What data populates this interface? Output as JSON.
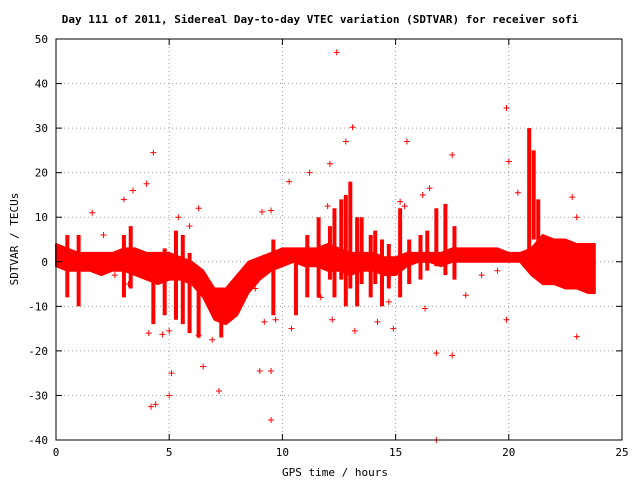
{
  "chart_data": {
    "type": "scatter",
    "title": "Day 111 of 2011, Sidereal Day-to-day VTEC variation (SDTVAR) for receiver sofi",
    "xlabel": "GPS time / hours",
    "ylabel": "SDTVAR / TECUs",
    "xlim": [
      0,
      25
    ],
    "ylim": [
      -40,
      50
    ],
    "x_ticks": [
      "0",
      "5",
      "10",
      "15",
      "20",
      "25"
    ],
    "y_ticks": [
      "50",
      "40",
      "30",
      "20",
      "10",
      "0",
      "-10",
      "-20",
      "-30",
      "-40"
    ],
    "grid": true,
    "marker": "+",
    "color": "#ff0000",
    "series": [
      {
        "band": [
          [
            0.0,
            -1,
            4
          ],
          [
            0.5,
            -2,
            3
          ],
          [
            1.0,
            -2,
            2
          ],
          [
            1.5,
            -2,
            2
          ],
          [
            2.0,
            -3,
            2
          ],
          [
            2.5,
            -2,
            2
          ],
          [
            3.0,
            -2,
            3
          ],
          [
            3.5,
            -3,
            3
          ],
          [
            4.0,
            -4,
            2
          ],
          [
            4.5,
            -5,
            2
          ],
          [
            5.0,
            -4,
            2
          ],
          [
            5.5,
            -4,
            1
          ],
          [
            6.0,
            -5,
            0
          ],
          [
            6.5,
            -8,
            -2
          ],
          [
            7.0,
            -13,
            -6
          ],
          [
            7.5,
            -14,
            -6
          ],
          [
            8.0,
            -12,
            -3
          ],
          [
            8.5,
            -7,
            0
          ],
          [
            9.0,
            -4,
            1
          ],
          [
            9.5,
            -2,
            2
          ],
          [
            10.0,
            -1,
            3
          ],
          [
            10.5,
            0,
            3
          ],
          [
            11.0,
            -1,
            3
          ],
          [
            11.5,
            -1,
            3
          ],
          [
            12.0,
            -2,
            4
          ],
          [
            12.5,
            -2,
            3
          ],
          [
            13.0,
            -3,
            2
          ],
          [
            13.5,
            -2,
            2
          ],
          [
            14.0,
            -2,
            2
          ],
          [
            14.5,
            -3,
            1
          ],
          [
            15.0,
            -3,
            1
          ],
          [
            15.5,
            -1,
            2
          ],
          [
            16.0,
            0,
            2
          ],
          [
            16.5,
            0,
            2
          ],
          [
            17.0,
            -1,
            2
          ],
          [
            17.5,
            0,
            3
          ],
          [
            18.0,
            0,
            3
          ],
          [
            18.5,
            0,
            3
          ],
          [
            19.0,
            0,
            3
          ],
          [
            19.5,
            0,
            3
          ],
          [
            20.0,
            0,
            2
          ],
          [
            20.5,
            0,
            2
          ],
          [
            21.0,
            -3,
            3
          ],
          [
            21.5,
            -5,
            6
          ],
          [
            22.0,
            -5,
            5
          ],
          [
            22.5,
            -6,
            5
          ],
          [
            23.0,
            -6,
            4
          ],
          [
            23.5,
            -7,
            4
          ],
          [
            23.8,
            -7,
            4
          ]
        ],
        "spikes": [
          [
            0.5,
            -8,
            6
          ],
          [
            1.0,
            -10,
            6
          ],
          [
            3.0,
            -8,
            6
          ],
          [
            3.3,
            -6,
            8
          ],
          [
            4.3,
            -14,
            -3
          ],
          [
            4.8,
            -12,
            3
          ],
          [
            5.3,
            -13,
            7
          ],
          [
            5.6,
            -14,
            6
          ],
          [
            5.9,
            -16,
            2
          ],
          [
            6.3,
            -17,
            -5
          ],
          [
            7.3,
            -17,
            -10
          ],
          [
            9.6,
            -12,
            5
          ],
          [
            10.6,
            -12,
            2
          ],
          [
            11.1,
            -8,
            6
          ],
          [
            11.6,
            -8,
            10
          ],
          [
            12.1,
            -4,
            8
          ],
          [
            12.3,
            -8,
            12
          ],
          [
            12.6,
            -4,
            14
          ],
          [
            12.8,
            -10,
            15
          ],
          [
            13.0,
            -6,
            18
          ],
          [
            13.3,
            -10,
            10
          ],
          [
            13.5,
            -5,
            10
          ],
          [
            13.9,
            -8,
            6
          ],
          [
            14.1,
            -5,
            7
          ],
          [
            14.4,
            -10,
            5
          ],
          [
            14.7,
            -6,
            4
          ],
          [
            15.2,
            -8,
            12
          ],
          [
            15.6,
            -5,
            5
          ],
          [
            16.1,
            -4,
            6
          ],
          [
            16.4,
            -2,
            7
          ],
          [
            16.8,
            -1,
            12
          ],
          [
            17.2,
            -3,
            13
          ],
          [
            17.6,
            -4,
            8
          ],
          [
            20.9,
            2,
            30
          ],
          [
            21.1,
            5,
            25
          ],
          [
            21.3,
            2,
            14
          ]
        ],
        "outliers": [
          [
            12.4,
            47
          ],
          [
            19.9,
            34.5
          ],
          [
            13.1,
            30.2
          ],
          [
            12.8,
            27
          ],
          [
            15.5,
            27
          ],
          [
            4.3,
            24.5
          ],
          [
            17.5,
            24
          ],
          [
            20.0,
            22.5
          ],
          [
            12.1,
            22
          ],
          [
            11.2,
            20
          ],
          [
            10.3,
            18
          ],
          [
            4.0,
            17.5
          ],
          [
            16.5,
            16.5
          ],
          [
            20.4,
            15.5
          ],
          [
            22.8,
            14.5
          ],
          [
            3.4,
            16
          ],
          [
            3.0,
            14
          ],
          [
            15.4,
            12.5
          ],
          [
            12.0,
            12.5
          ],
          [
            6.3,
            12
          ],
          [
            9.1,
            11.2
          ],
          [
            9.5,
            11.5
          ],
          [
            5.4,
            10
          ],
          [
            23.0,
            10
          ],
          [
            15.2,
            13.5
          ],
          [
            16.2,
            15
          ],
          [
            1.6,
            11
          ],
          [
            2.1,
            6
          ],
          [
            5.9,
            8
          ],
          [
            5.0,
            -15.5
          ],
          [
            4.7,
            -16.3
          ],
          [
            4.1,
            -16
          ],
          [
            6.3,
            -16.5
          ],
          [
            6.9,
            -17.5
          ],
          [
            9.2,
            -13.5
          ],
          [
            9.7,
            -13
          ],
          [
            10.4,
            -15
          ],
          [
            12.2,
            -13
          ],
          [
            13.2,
            -15.5
          ],
          [
            14.2,
            -13.5
          ],
          [
            14.9,
            -15
          ],
          [
            16.3,
            -10.5
          ],
          [
            16.8,
            -20.5
          ],
          [
            17.5,
            -21
          ],
          [
            19.9,
            -13
          ],
          [
            18.1,
            -7.5
          ],
          [
            23.0,
            -16.8
          ],
          [
            5.1,
            -25
          ],
          [
            4.4,
            -32
          ],
          [
            4.2,
            -32.5
          ],
          [
            5.0,
            -30
          ],
          [
            6.5,
            -23.5
          ],
          [
            7.2,
            -29
          ],
          [
            9.0,
            -24.5
          ],
          [
            9.5,
            -24.5
          ],
          [
            9.5,
            -35.5
          ],
          [
            16.8,
            -40
          ],
          [
            3.2,
            -5
          ],
          [
            2.6,
            -3
          ],
          [
            8.8,
            -6
          ],
          [
            11.7,
            -8
          ],
          [
            14.7,
            -9
          ],
          [
            18.8,
            -3
          ],
          [
            19.5,
            -2
          ],
          [
            21.5,
            0
          ]
        ]
      }
    ]
  }
}
